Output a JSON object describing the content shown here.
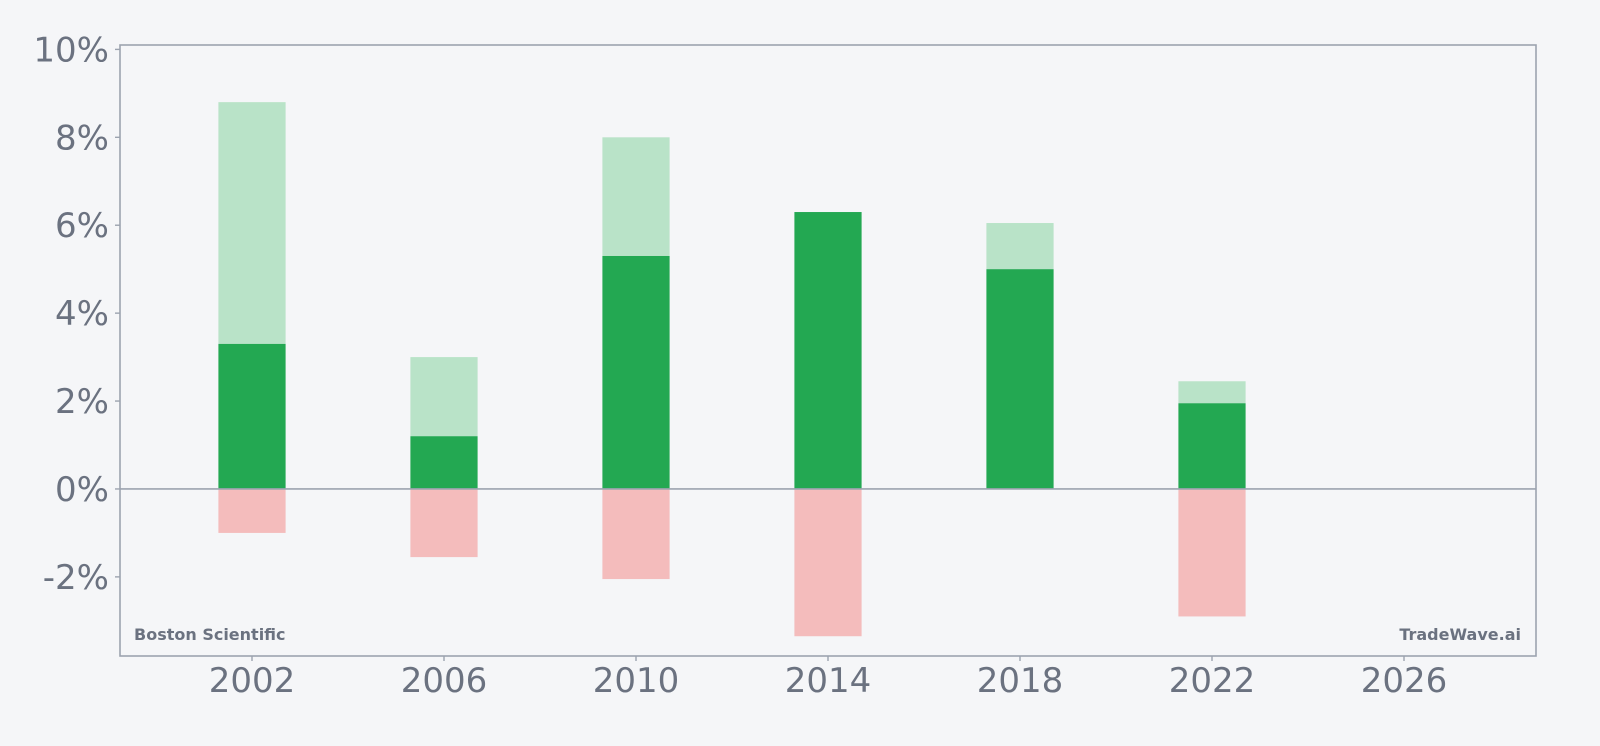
{
  "chart_data": {
    "type": "bar",
    "x": [
      2002,
      2006,
      2010,
      2014,
      2018,
      2022
    ],
    "series": [
      {
        "values": [
          3.3,
          1.2,
          5.3,
          6.3,
          5.0,
          1.95
        ]
      },
      {
        "values": [
          8.8,
          3.0,
          8.0,
          6.25,
          6.05,
          2.45
        ]
      },
      {
        "values": [
          -1.0,
          -1.55,
          -2.05,
          -3.35,
          0,
          -2.9
        ]
      }
    ],
    "xticks": [
      "2002",
      "2006",
      "2010",
      "2014",
      "2018",
      "2022",
      "2026"
    ],
    "yticks": [
      "10%",
      "8%",
      "6%",
      "4%",
      "2%",
      "0%",
      "-2%"
    ],
    "xlim": [
      1999.25,
      2028.75
    ],
    "ylim": [
      -3.8,
      10.1
    ],
    "grid": false,
    "annotations": {
      "left": "Boston Scientific",
      "right": "TradeWave.ai"
    },
    "colors": {
      "primary": "#23a852",
      "upper": "#b9e3c8",
      "negative": "#f4bcbc",
      "axis": "#9ca3af",
      "text": "#6b7280"
    }
  }
}
